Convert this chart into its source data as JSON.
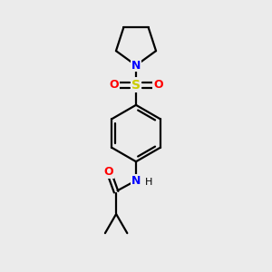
{
  "bg_color": "#ebebeb",
  "line_color": "#000000",
  "N_color": "#0000ff",
  "O_color": "#ff0000",
  "S_color": "#cccc00",
  "line_width": 1.6,
  "font_size": 8.5,
  "xlim": [
    0,
    10
  ],
  "ylim": [
    0,
    10
  ],
  "bx": 5.0,
  "by": 5.1,
  "br": 1.05
}
